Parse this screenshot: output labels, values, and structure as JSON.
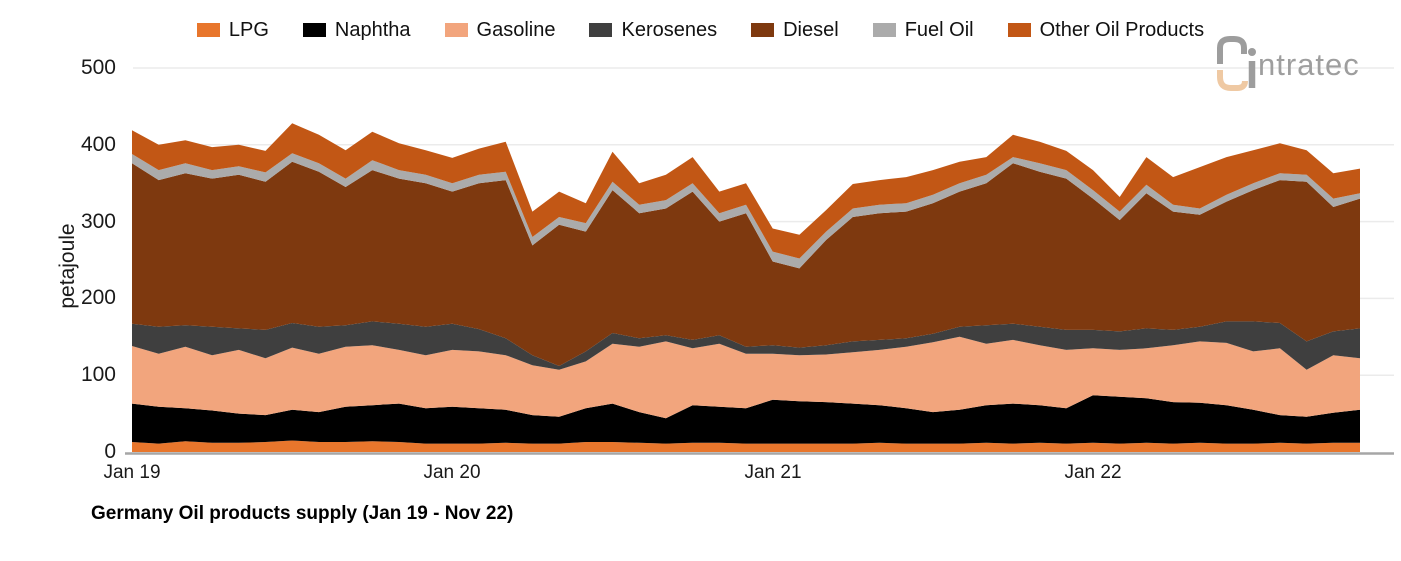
{
  "title": "Germany Oil products supply (Jan 19 - Nov 22)",
  "logo": {
    "brand": "intratec",
    "display_text": "ntratec"
  },
  "y_axis": {
    "label": "petajoule",
    "ticks": [
      "500",
      "400",
      "300",
      "200",
      "100",
      "0"
    ]
  },
  "x_axis": {
    "ticks": [
      "Jan 19",
      "Jan 20",
      "Jan 21",
      "Jan 22"
    ]
  },
  "colors": {
    "axis_line": "#A6A6A6",
    "gridline": "#EBEBEB",
    "text": "#1a1a1a",
    "logo_gray": "#9D9D9D",
    "logo_peach": "#EFC9A3"
  },
  "chart_data": {
    "type": "area",
    "stacked": true,
    "unit": "petajoule",
    "title": "Germany Oil products supply (Jan 19 - Nov 22)",
    "ylabel": "petajoule",
    "ylim": [
      0,
      500
    ],
    "grid": "horizontal-light",
    "legend_position": "top-center",
    "x": [
      "Jan 19",
      "Feb 19",
      "Mar 19",
      "Apr 19",
      "May 19",
      "Jun 19",
      "Jul 19",
      "Aug 19",
      "Sep 19",
      "Oct 19",
      "Nov 19",
      "Dec 19",
      "Jan 20",
      "Feb 20",
      "Mar 20",
      "Apr 20",
      "May 20",
      "Jun 20",
      "Jul 20",
      "Aug 20",
      "Sep 20",
      "Oct 20",
      "Nov 20",
      "Dec 20",
      "Jan 21",
      "Feb 21",
      "Mar 21",
      "Apr 21",
      "May 21",
      "Jun 21",
      "Jul 21",
      "Aug 21",
      "Sep 21",
      "Oct 21",
      "Nov 21",
      "Dec 21",
      "Jan 22",
      "Feb 22",
      "Mar 22",
      "Apr 22",
      "May 22",
      "Jun 22",
      "Jul 22",
      "Aug 22",
      "Sep 22",
      "Oct 22",
      "Nov 22"
    ],
    "series": [
      {
        "name": "LPG",
        "color": "#E8762C",
        "values": [
          13,
          11,
          14,
          12,
          12,
          13,
          15,
          13,
          13,
          14,
          13,
          11,
          11,
          11,
          12,
          11,
          11,
          13,
          13,
          12,
          11,
          12,
          12,
          11,
          11,
          11,
          11,
          11,
          12,
          11,
          11,
          11,
          12,
          11,
          12,
          11,
          12,
          11,
          12,
          11,
          12,
          11,
          11,
          12,
          11,
          12,
          12
        ]
      },
      {
        "name": "Naphtha",
        "color": "#000000",
        "values": [
          50,
          48,
          43,
          42,
          38,
          35,
          40,
          39,
          46,
          47,
          50,
          46,
          48,
          46,
          43,
          37,
          35,
          44,
          50,
          40,
          33,
          49,
          47,
          46,
          57,
          55,
          54,
          52,
          49,
          46,
          41,
          44,
          49,
          52,
          49,
          46,
          62,
          61,
          58,
          54,
          52,
          50,
          44,
          36,
          35,
          39,
          43
        ]
      },
      {
        "name": "Gasoline",
        "color": "#F2A57D",
        "values": [
          75,
          69,
          80,
          72,
          83,
          74,
          81,
          76,
          78,
          78,
          70,
          69,
          74,
          74,
          71,
          65,
          61,
          61,
          78,
          85,
          100,
          74,
          82,
          71,
          60,
          60,
          62,
          67,
          72,
          80,
          91,
          95,
          80,
          83,
          78,
          76,
          61,
          61,
          65,
          74,
          80,
          81,
          76,
          87,
          61,
          75,
          67
        ]
      },
      {
        "name": "Kerosenes",
        "color": "#3F3F3F",
        "values": [
          29,
          35,
          28,
          37,
          28,
          37,
          32,
          35,
          28,
          31,
          34,
          37,
          34,
          29,
          22,
          13,
          5,
          13,
          14,
          11,
          8,
          11,
          11,
          9,
          11,
          10,
          12,
          14,
          13,
          11,
          11,
          13,
          24,
          21,
          24,
          26,
          24,
          24,
          26,
          20,
          19,
          28,
          39,
          33,
          37,
          31,
          39
        ]
      },
      {
        "name": "Diesel",
        "color": "#7E390F",
        "values": [
          209,
          191,
          198,
          193,
          200,
          193,
          210,
          202,
          180,
          197,
          189,
          187,
          172,
          190,
          206,
          143,
          184,
          156,
          186,
          163,
          165,
          193,
          148,
          174,
          109,
          103,
          137,
          162,
          165,
          165,
          170,
          176,
          185,
          209,
          202,
          197,
          171,
          145,
          176,
          154,
          146,
          156,
          171,
          186,
          208,
          162,
          169
        ]
      },
      {
        "name": "Fuel Oil",
        "color": "#ABABAB",
        "values": [
          12,
          13,
          13,
          11,
          11,
          12,
          11,
          11,
          11,
          13,
          11,
          11,
          11,
          11,
          11,
          11,
          10,
          11,
          11,
          11,
          11,
          11,
          11,
          11,
          13,
          13,
          11,
          11,
          11,
          11,
          11,
          11,
          11,
          8,
          11,
          11,
          11,
          11,
          11,
          9,
          8,
          9,
          9,
          9,
          9,
          11,
          7
        ]
      },
      {
        "name": "Other Oil Products",
        "color": "#C25715",
        "values": [
          31,
          33,
          30,
          30,
          28,
          28,
          39,
          37,
          37,
          37,
          35,
          32,
          33,
          34,
          39,
          33,
          33,
          26,
          39,
          28,
          33,
          34,
          28,
          28,
          30,
          31,
          28,
          32,
          32,
          34,
          32,
          28,
          23,
          29,
          28,
          25,
          26,
          19,
          36,
          36,
          54,
          49,
          43,
          39,
          32,
          33,
          32
        ]
      }
    ]
  }
}
